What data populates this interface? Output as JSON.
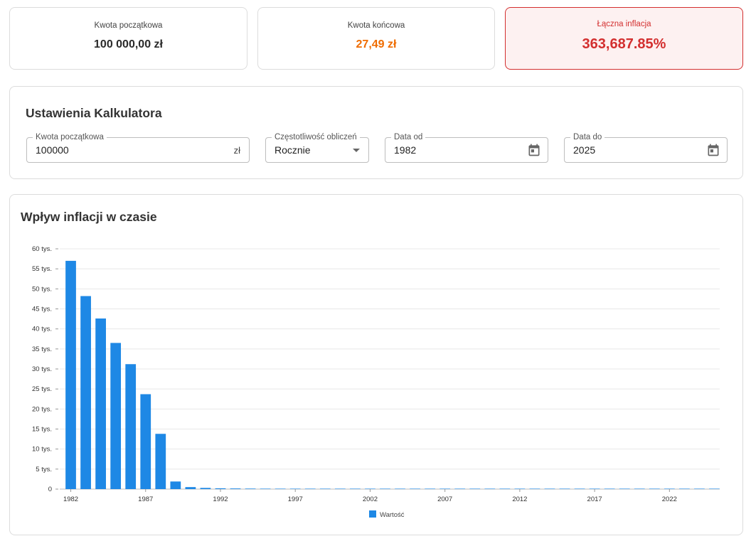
{
  "stats": {
    "initial": {
      "label": "Kwota początkowa",
      "value": "100 000,00 zł"
    },
    "final": {
      "label": "Kwota końcowa",
      "value": "27,49 zł"
    },
    "inflation": {
      "label": "Łączna inflacja",
      "value": "363,687.85%"
    }
  },
  "settings": {
    "title": "Ustawienia Kalkulatora",
    "amount": {
      "label": "Kwota początkowa",
      "value": "100000",
      "suffix": "zł"
    },
    "frequency": {
      "label": "Częstotliwość obliczeń",
      "value": "Rocznie"
    },
    "date_from": {
      "label": "Data od",
      "value": "1982"
    },
    "date_to": {
      "label": "Data do",
      "value": "2025"
    }
  },
  "chart_title": "Wpływ inflacji w czasie",
  "colors": {
    "bar": "#1e88e5",
    "inflation": "#d32f2f",
    "final": "#ef6c00"
  },
  "icons": {
    "date_from": "calendar-icon",
    "date_to": "calendar-icon",
    "frequency": "dropdown-arrow-icon"
  },
  "chart_data": {
    "type": "bar",
    "categories": [
      "1982",
      "1983",
      "1984",
      "1985",
      "1986",
      "1987",
      "1988",
      "1989",
      "1990",
      "1991",
      "1992",
      "1993",
      "1994",
      "1995",
      "1996",
      "1997",
      "1998",
      "1999",
      "2000",
      "2001",
      "2002",
      "2003",
      "2004",
      "2005",
      "2006",
      "2007",
      "2008",
      "2009",
      "2010",
      "2011",
      "2012",
      "2013",
      "2014",
      "2015",
      "2016",
      "2017",
      "2018",
      "2019",
      "2020",
      "2021",
      "2022",
      "2023",
      "2024",
      "2025"
    ],
    "x_tick_labels": [
      "1982",
      "1987",
      "1992",
      "1997",
      "2002",
      "2007",
      "2012",
      "2017",
      "2022"
    ],
    "y_tick_labels": [
      "0",
      "5 tys.",
      "10 tys.",
      "15 tys.",
      "20 tys.",
      "25 tys.",
      "30 tys.",
      "35 tys.",
      "40 tys.",
      "45 tys.",
      "50 tys.",
      "55 tys.",
      "60 tys."
    ],
    "series": [
      {
        "name": "Wartość",
        "values": [
          57000,
          48200,
          42600,
          36500,
          31200,
          23700,
          13800,
          1900,
          500,
          300,
          200,
          160,
          130,
          110,
          95,
          85,
          75,
          70,
          65,
          60,
          55,
          52,
          50,
          48,
          46,
          45,
          43,
          42,
          41,
          40,
          39,
          38,
          37,
          36,
          35,
          34,
          33,
          32,
          31,
          30,
          29,
          28.5,
          28,
          27.49
        ]
      }
    ],
    "ylim": [
      0,
      60000
    ],
    "grid": true,
    "legend": "bottom-center"
  }
}
